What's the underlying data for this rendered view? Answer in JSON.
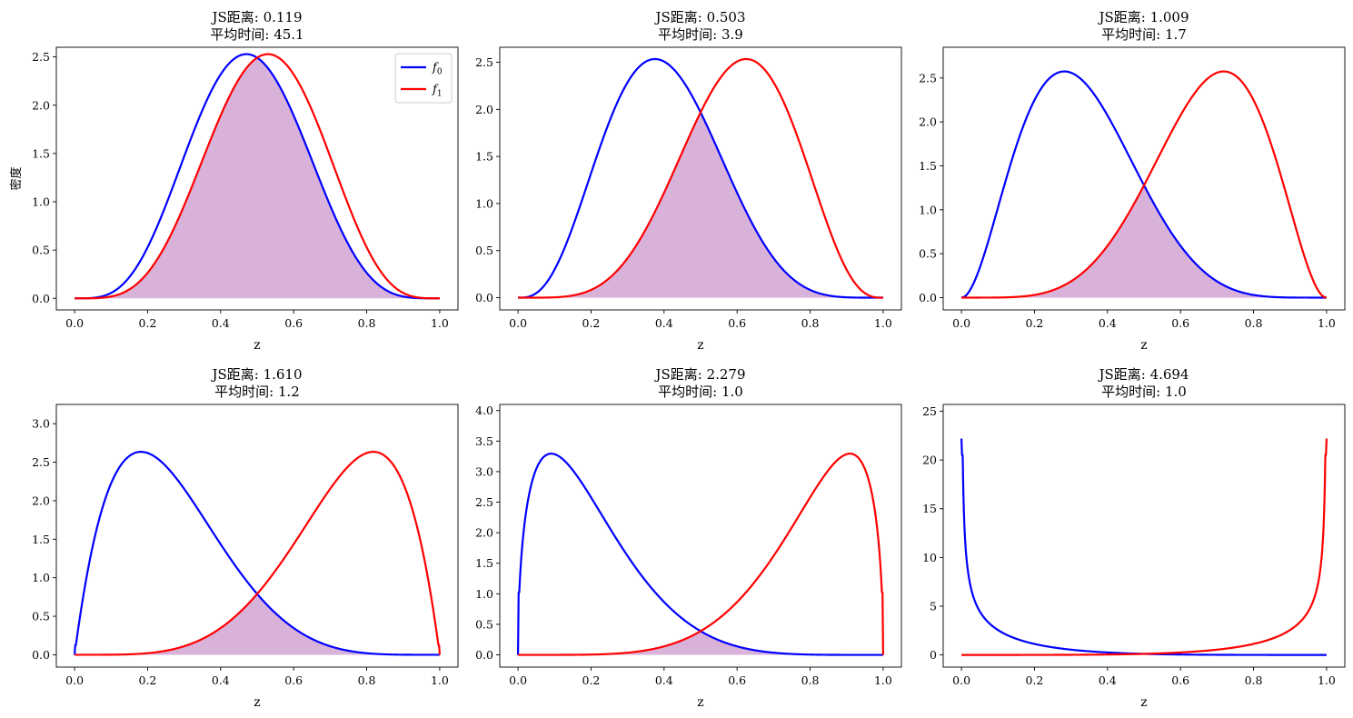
{
  "chart_data": [
    {
      "type": "line",
      "title": "JS距离: 0.119\n平均时间: 45.1",
      "xlabel": "z",
      "ylabel": "密度",
      "xlim": [
        -0.05,
        1.05
      ],
      "ylim": [
        -0.12,
        2.6
      ],
      "xticks": [
        0.0,
        0.2,
        0.4,
        0.6,
        0.8,
        1.0
      ],
      "yticks": [
        0.0,
        0.5,
        1.0,
        1.5,
        2.0,
        2.5
      ],
      "legend": {
        "placement": "top-right",
        "entries": [
          {
            "label": "f",
            "sub": "0"
          },
          {
            "label": "f",
            "sub": "1"
          }
        ]
      },
      "shaded_overlap": true,
      "series": [
        {
          "label": "f0",
          "color": "#0000ff",
          "beta": [
            5,
            5.5
          ]
        },
        {
          "label": "f1",
          "color": "#ff0000",
          "beta": [
            5.5,
            5
          ]
        }
      ]
    },
    {
      "type": "line",
      "title": "JS距离: 0.503\n平均时间: 3.9",
      "xlabel": "z",
      "ylabel": "",
      "xlim": [
        -0.05,
        1.05
      ],
      "ylim": [
        -0.13,
        2.66
      ],
      "xticks": [
        0.0,
        0.2,
        0.4,
        0.6,
        0.8,
        1.0
      ],
      "yticks": [
        0.0,
        0.5,
        1.0,
        1.5,
        2.0,
        2.5
      ],
      "shaded_overlap": true,
      "series": [
        {
          "label": "f0",
          "color": "#0000ff",
          "beta": [
            4,
            6
          ]
        },
        {
          "label": "f1",
          "color": "#ff0000",
          "beta": [
            6,
            4
          ]
        }
      ]
    },
    {
      "type": "line",
      "title": "JS距离: 1.009\n平均时间: 1.7",
      "xlabel": "z",
      "ylabel": "",
      "xlim": [
        -0.05,
        1.05
      ],
      "ylim": [
        -0.14,
        2.85
      ],
      "xticks": [
        0.0,
        0.2,
        0.4,
        0.6,
        0.8,
        1.0
      ],
      "yticks": [
        0.0,
        0.5,
        1.0,
        1.5,
        2.0,
        2.5
      ],
      "shaded_overlap": true,
      "series": [
        {
          "label": "f0",
          "color": "#0000ff",
          "beta": [
            3,
            6.1
          ]
        },
        {
          "label": "f1",
          "color": "#ff0000",
          "beta": [
            6.1,
            3
          ]
        }
      ]
    },
    {
      "type": "line",
      "title": "JS距离: 1.610\n平均时间: 1.2",
      "xlabel": "z",
      "ylabel": "",
      "xlim": [
        -0.05,
        1.05
      ],
      "ylim": [
        -0.16,
        3.25
      ],
      "xticks": [
        0.0,
        0.2,
        0.4,
        0.6,
        0.8,
        1.0
      ],
      "yticks": [
        0.0,
        0.5,
        1.0,
        1.5,
        2.0,
        2.5,
        3.0
      ],
      "shaded_overlap": true,
      "series": [
        {
          "label": "f0",
          "color": "#0000ff",
          "beta": [
            2,
            5.5
          ]
        },
        {
          "label": "f1",
          "color": "#ff0000",
          "beta": [
            5.5,
            2
          ]
        }
      ]
    },
    {
      "type": "line",
      "title": "JS距离: 2.279\n平均时间: 1.0",
      "xlabel": "z",
      "ylabel": "",
      "xlim": [
        -0.05,
        1.05
      ],
      "ylim": [
        -0.2,
        4.1
      ],
      "xticks": [
        0.0,
        0.2,
        0.4,
        0.6,
        0.8,
        1.0
      ],
      "yticks": [
        0.0,
        0.5,
        1.0,
        1.5,
        2.0,
        2.5,
        3.0,
        3.5,
        4.0
      ],
      "shaded_overlap": true,
      "series": [
        {
          "label": "f0",
          "color": "#0000ff",
          "beta": [
            1.5,
            6
          ]
        },
        {
          "label": "f1",
          "color": "#ff0000",
          "beta": [
            6,
            1.5
          ]
        }
      ]
    },
    {
      "type": "line",
      "title": "JS距离: 4.694\n平均时间: 1.0",
      "xlabel": "z",
      "ylabel": "",
      "xlim": [
        -0.05,
        1.05
      ],
      "ylim": [
        -1.25,
        25.7
      ],
      "xticks": [
        0.0,
        0.2,
        0.4,
        0.6,
        0.8,
        1.0
      ],
      "yticks": [
        0,
        5,
        10,
        15,
        20,
        25
      ],
      "shaded_overlap": true,
      "series": [
        {
          "label": "f0",
          "color": "#0000ff",
          "beta": [
            0.5,
            5
          ]
        },
        {
          "label": "f1",
          "color": "#ff0000",
          "beta": [
            5,
            0.5
          ]
        }
      ]
    }
  ]
}
